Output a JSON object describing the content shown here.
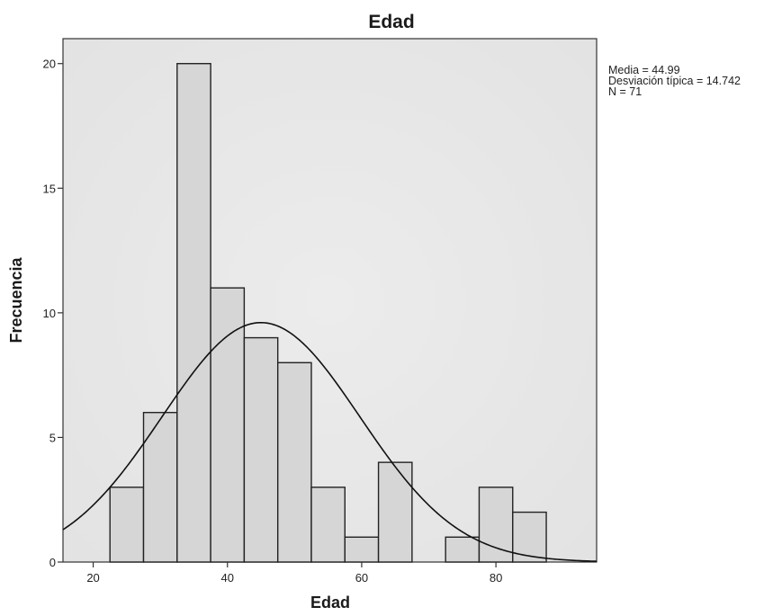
{
  "chart_data": {
    "type": "bar",
    "subtype": "histogram",
    "title": "Edad",
    "xlabel": "Edad",
    "ylabel": "Frecuencia",
    "xlim": [
      15.5,
      95
    ],
    "ylim": [
      0,
      21
    ],
    "xticks": [
      20,
      40,
      60,
      80
    ],
    "yticks": [
      0,
      5,
      10,
      15,
      20
    ],
    "bin_width": 5,
    "bins": [
      {
        "start": 22.5,
        "end": 27.5,
        "count": 3
      },
      {
        "start": 27.5,
        "end": 32.5,
        "count": 6
      },
      {
        "start": 32.5,
        "end": 37.5,
        "count": 20
      },
      {
        "start": 37.5,
        "end": 42.5,
        "count": 11
      },
      {
        "start": 42.5,
        "end": 47.5,
        "count": 9
      },
      {
        "start": 47.5,
        "end": 52.5,
        "count": 8
      },
      {
        "start": 52.5,
        "end": 57.5,
        "count": 3
      },
      {
        "start": 57.5,
        "end": 62.5,
        "count": 1
      },
      {
        "start": 62.5,
        "end": 67.5,
        "count": 4
      },
      {
        "start": 67.5,
        "end": 72.5,
        "count": 0
      },
      {
        "start": 72.5,
        "end": 77.5,
        "count": 1
      },
      {
        "start": 77.5,
        "end": 82.5,
        "count": 3
      },
      {
        "start": 82.5,
        "end": 87.5,
        "count": 2
      }
    ],
    "normal_curve": {
      "mean": 44.99,
      "sd": 14.742,
      "n": 71
    },
    "grid": false,
    "colors": {
      "bar_fill": "#d6d6d6",
      "bar_stroke": "#222222",
      "curve": "#111111",
      "plot_bg": "#e9e9e9"
    }
  },
  "stats": {
    "media": "Media = 44.99",
    "desviacion": "Desviación típica = 14.742",
    "n": "N = 71"
  }
}
